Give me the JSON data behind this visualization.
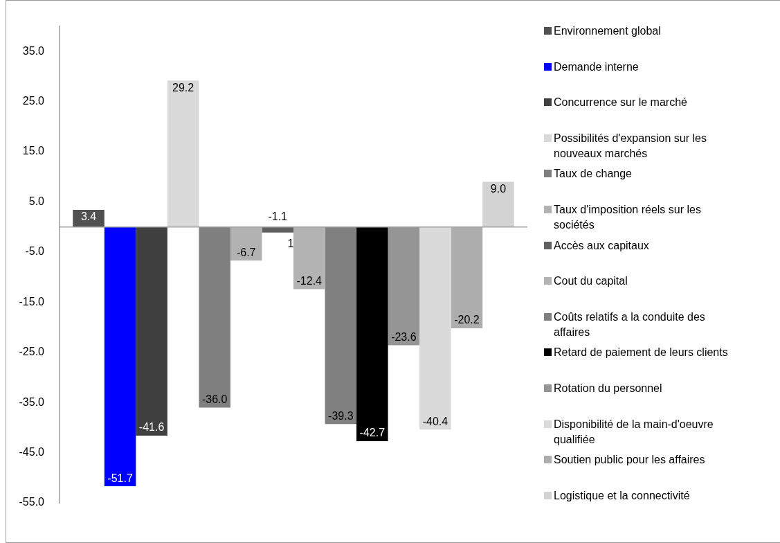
{
  "chart_data": {
    "type": "bar",
    "categories": [
      null
    ],
    "series": [
      {
        "name": "Environnement global",
        "color": "#505050",
        "values": [
          3.4
        ],
        "value_labels": [
          "3.4"
        ]
      },
      {
        "name": "Demande interne",
        "color": "#0000ff",
        "values": [
          -51.7
        ],
        "value_labels": [
          "-51.7"
        ]
      },
      {
        "name": "Concurrence sur le marché",
        "color": "#404040",
        "values": [
          -41.6
        ],
        "value_labels": [
          "-41.6"
        ]
      },
      {
        "name": "Possibilités d'expansion sur les nouveaux marchés",
        "color": "#d9d9d9",
        "values": [
          29.2
        ],
        "value_labels": [
          "29.2"
        ]
      },
      {
        "name": "Taux de change",
        "color": "#7f7f7f",
        "values": [
          -36.0
        ],
        "value_labels": [
          "-36.0"
        ]
      },
      {
        "name": "Taux d'imposition réels sur les sociétés",
        "color": "#b2b2b2",
        "values": [
          -6.7
        ],
        "value_labels": [
          "-6.7"
        ]
      },
      {
        "name": "Accès aux capitaux",
        "color": "#606060",
        "values": [
          -1.1
        ],
        "value_labels": [
          "-1.1"
        ]
      },
      {
        "name": "Cout du capital",
        "color": "#b3b3b3",
        "values": [
          -12.4
        ],
        "value_labels": [
          "-12.4"
        ]
      },
      {
        "name": "Coûts relatifs a la conduite des affaires",
        "color": "#808080",
        "values": [
          -39.3
        ],
        "value_labels": [
          "-39.3"
        ]
      },
      {
        "name": "Retard de paiement de leurs clients",
        "color": "#000000",
        "values": [
          -42.7
        ],
        "value_labels": [
          "-42.7"
        ]
      },
      {
        "name": "Rotation du personnel",
        "color": "#959595",
        "values": [
          -23.6
        ],
        "value_labels": [
          "-23.6"
        ]
      },
      {
        "name": "Disponibilité de la main-d'oeuvre qualifiée",
        "color": "#dadada",
        "values": [
          -40.4
        ],
        "value_labels": [
          "-40.4"
        ]
      },
      {
        "name": "Soutien public pour les affaires",
        "color": "#adadad",
        "values": [
          -20.2
        ],
        "value_labels": [
          "-20.2"
        ]
      },
      {
        "name": "Logistique et la connectivité",
        "color": "#d3d3d3",
        "values": [
          9.0
        ],
        "value_labels": [
          "9.0"
        ]
      }
    ],
    "ylim": [
      -55,
      40
    ],
    "yticks": [
      {
        "value": -55,
        "label": "-55.0"
      },
      {
        "value": -45,
        "label": "-45.0"
      },
      {
        "value": -35,
        "label": "-35.0"
      },
      {
        "value": -25,
        "label": "-25.0"
      },
      {
        "value": -15,
        "label": "-15.0"
      },
      {
        "value": -5,
        "label": "-5.0"
      },
      {
        "value": 5,
        "label": "5.0"
      },
      {
        "value": 15,
        "label": "15.0"
      },
      {
        "value": 25,
        "label": "25.0"
      },
      {
        "value": 35,
        "label": "35.0"
      }
    ],
    "annotations": [
      {
        "text": "1",
        "y": -3.5
      }
    ],
    "legend": "right"
  }
}
